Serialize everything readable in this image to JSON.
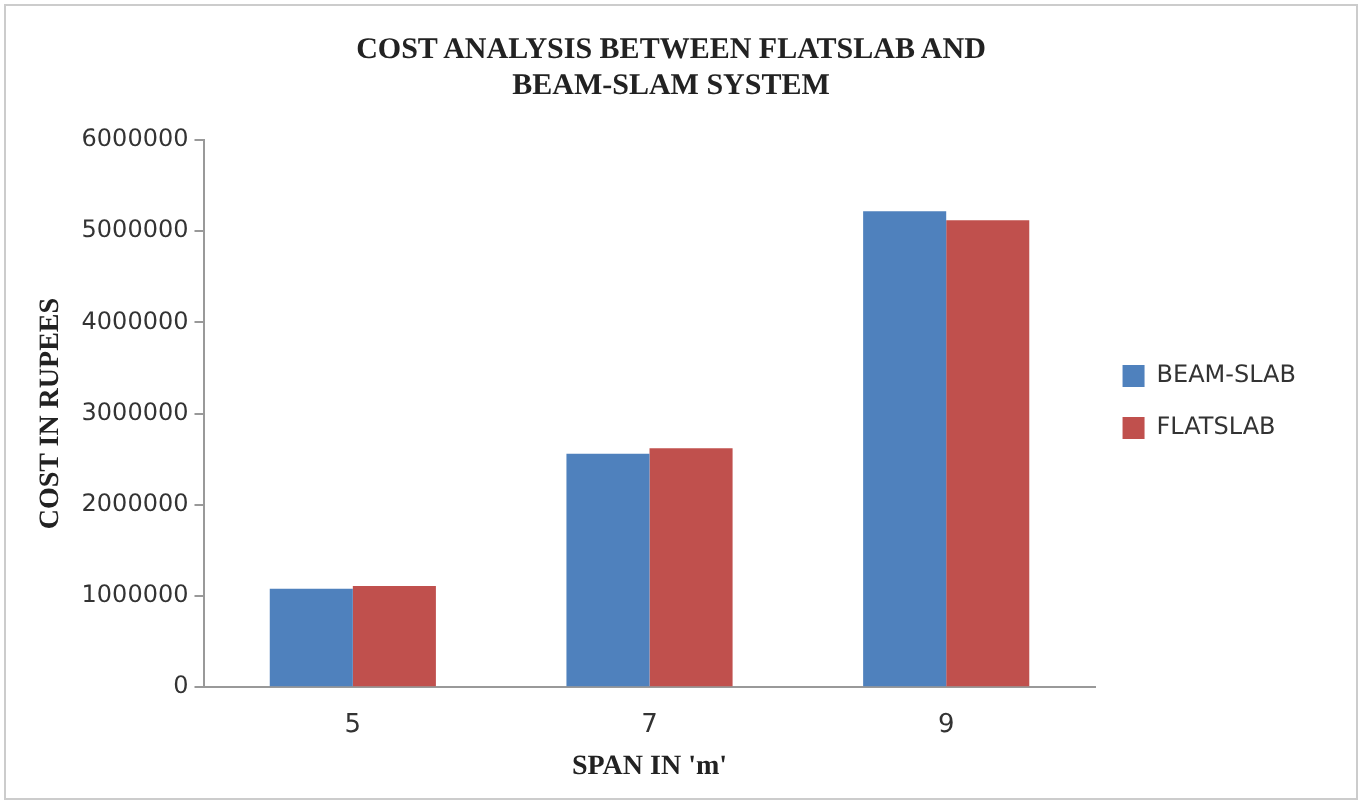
{
  "chart_data": {
    "type": "bar",
    "title": "COST ANALYSIS BETWEEN FLATSLAB AND BEAM-SLAM SYSTEM",
    "xlabel": "SPAN IN 'm'",
    "ylabel": "COST IN RUPEES",
    "categories": [
      "5",
      "7",
      "9"
    ],
    "series": [
      {
        "name": "BEAM-SLAB",
        "color": "#4f81bd",
        "values": [
          1080000,
          2560000,
          5220000
        ]
      },
      {
        "name": "FLATSLAB",
        "color": "#c0504d",
        "values": [
          1110000,
          2620000,
          5120000
        ]
      }
    ],
    "ylim": [
      0,
      6000000
    ],
    "yticks": [
      0,
      1000000,
      2000000,
      3000000,
      4000000,
      5000000,
      6000000
    ],
    "grid": false,
    "legend": "right"
  }
}
